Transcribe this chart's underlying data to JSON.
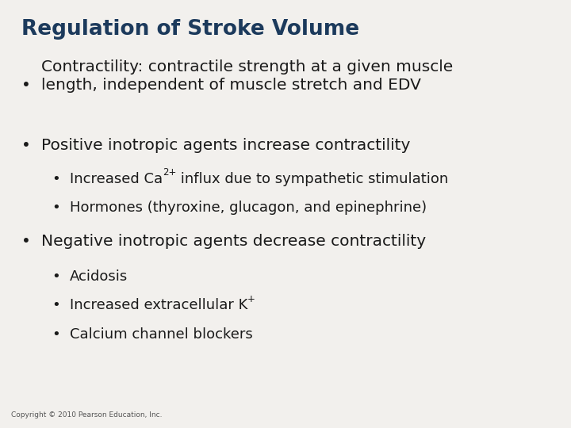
{
  "title": "Regulation of Stroke Volume",
  "title_color": "#1c3a5c",
  "title_fontsize": 19,
  "body_color": "#1a1a1a",
  "background_color": "#f2f0ed",
  "copyright": "Copyright © 2010 Pearson Education, Inc.",
  "copyright_fontsize": 6.5,
  "bullet_fontsize": 14.5,
  "sub_bullet_fontsize": 13.0,
  "items": [
    {
      "level": 1,
      "text": "Contractility: contractile strength at a given muscle\nlength, independent of muscle stretch and EDV",
      "text_parts": null
    },
    {
      "level": 1,
      "text": "Positive inotropic agents increase contractility",
      "text_parts": null
    },
    {
      "level": 2,
      "text": null,
      "text_parts": [
        {
          "text": "Increased Ca",
          "super": false
        },
        {
          "text": "2+",
          "super": true
        },
        {
          "text": " influx due to sympathetic stimulation",
          "super": false
        }
      ]
    },
    {
      "level": 2,
      "text": "Hormones (thyroxine, glucagon, and epinephrine)",
      "text_parts": null
    },
    {
      "level": 1,
      "text": "Negative inotropic agents decrease contractility",
      "text_parts": null
    },
    {
      "level": 2,
      "text": "Acidosis",
      "text_parts": null
    },
    {
      "level": 2,
      "text": null,
      "text_parts": [
        {
          "text": "Increased extracellular K",
          "super": false
        },
        {
          "text": "+",
          "super": true
        }
      ]
    },
    {
      "level": 2,
      "text": "Calcium channel blockers",
      "text_parts": null
    }
  ]
}
